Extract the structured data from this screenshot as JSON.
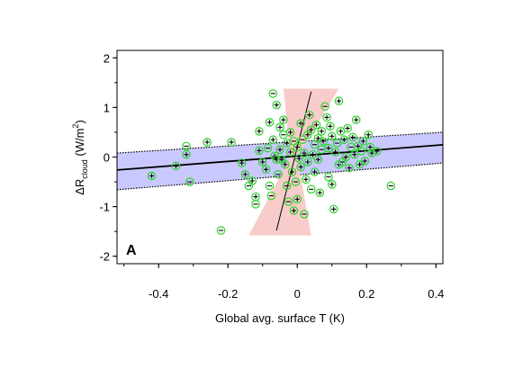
{
  "chart_data": {
    "type": "scatter",
    "panel_label": "A",
    "xlabel": "Global avg. surface T (K)",
    "ylabel": {
      "prefix": "ΔR",
      "subscript": "cloud",
      "units_open": " (W/m",
      "superscript": "2",
      "units_close": ")"
    },
    "xlim": [
      -0.52,
      0.42
    ],
    "ylim": [
      -2.15,
      2.15
    ],
    "xticks": [
      -0.4,
      -0.2,
      0,
      0.2,
      0.4
    ],
    "xtick_labels": [
      "-0.4",
      "-0.2",
      "0",
      "0.2",
      "0.4"
    ],
    "yticks": [
      -2,
      -1,
      0,
      1,
      2
    ],
    "ytick_labels": [
      "-2",
      "-1",
      "0",
      "1",
      "2"
    ],
    "grid": false,
    "marker_color": "#2cd52c",
    "fit_main": {
      "slope": 0.54,
      "intercept": 0.02,
      "x_range": [
        -0.52,
        0.42
      ],
      "color": "#000000"
    },
    "fit_band_blue": {
      "color": "#c9c9ff",
      "x": [
        -0.52,
        0.42
      ],
      "upper": [
        0.08,
        0.5
      ],
      "lower": [
        -0.66,
        -0.12
      ]
    },
    "fit_inverse": {
      "x_range": [
        -0.06,
        0.04
      ],
      "y_range": [
        -1.48,
        1.32
      ],
      "color": "#000000"
    },
    "fit_band_red": {
      "color": "#f9cccc",
      "top_x": [
        -0.04,
        0.12
      ],
      "top_y": 1.38,
      "bottom_x": [
        -0.14,
        0.04
      ],
      "bottom_y": -1.58,
      "waist_x": [
        -0.02,
        0.0
      ],
      "waist_y": 0.0
    },
    "points": [
      {
        "x": -0.42,
        "y": -0.38,
        "s": "+"
      },
      {
        "x": -0.35,
        "y": -0.18,
        "s": "+"
      },
      {
        "x": -0.32,
        "y": 0.22,
        "s": "-"
      },
      {
        "x": -0.32,
        "y": 0.05,
        "s": "+"
      },
      {
        "x": -0.31,
        "y": -0.5,
        "s": "-"
      },
      {
        "x": -0.26,
        "y": 0.3,
        "s": "+"
      },
      {
        "x": -0.22,
        "y": -1.48,
        "s": "-"
      },
      {
        "x": -0.19,
        "y": 0.3,
        "s": "+"
      },
      {
        "x": -0.16,
        "y": -0.12,
        "s": "+"
      },
      {
        "x": -0.15,
        "y": -0.35,
        "s": "+"
      },
      {
        "x": -0.14,
        "y": -0.58,
        "s": "-"
      },
      {
        "x": -0.13,
        "y": -0.48,
        "s": "+"
      },
      {
        "x": -0.12,
        "y": -0.8,
        "s": "+"
      },
      {
        "x": -0.12,
        "y": -0.95,
        "s": "-"
      },
      {
        "x": -0.11,
        "y": 0.52,
        "s": "+"
      },
      {
        "x": -0.11,
        "y": 0.13,
        "s": "+"
      },
      {
        "x": -0.1,
        "y": -0.1,
        "s": "+"
      },
      {
        "x": -0.09,
        "y": -0.25,
        "s": "+"
      },
      {
        "x": -0.085,
        "y": 0.18,
        "s": "-"
      },
      {
        "x": -0.08,
        "y": 0.7,
        "s": "+"
      },
      {
        "x": -0.08,
        "y": -0.58,
        "s": "-"
      },
      {
        "x": -0.075,
        "y": -0.78,
        "s": "-"
      },
      {
        "x": -0.07,
        "y": 1.28,
        "s": "-"
      },
      {
        "x": -0.07,
        "y": 0.35,
        "s": "+"
      },
      {
        "x": -0.065,
        "y": 0.02,
        "s": "+"
      },
      {
        "x": -0.06,
        "y": 1.05,
        "s": "+"
      },
      {
        "x": -0.06,
        "y": -0.05,
        "s": "+"
      },
      {
        "x": -0.055,
        "y": -0.35,
        "s": "-"
      },
      {
        "x": -0.05,
        "y": 0.6,
        "s": "+"
      },
      {
        "x": -0.05,
        "y": 0.15,
        "s": "+"
      },
      {
        "x": -0.045,
        "y": -0.05,
        "s": "+"
      },
      {
        "x": -0.04,
        "y": 0.75,
        "s": "+"
      },
      {
        "x": -0.04,
        "y": 0.45,
        "s": "-"
      },
      {
        "x": -0.035,
        "y": -0.15,
        "s": "+"
      },
      {
        "x": -0.03,
        "y": -0.58,
        "s": "-"
      },
      {
        "x": -0.03,
        "y": 0.28,
        "s": "+"
      },
      {
        "x": -0.025,
        "y": -0.9,
        "s": "-"
      },
      {
        "x": -0.02,
        "y": 0.5,
        "s": "+"
      },
      {
        "x": -0.02,
        "y": 0.1,
        "s": "+"
      },
      {
        "x": -0.015,
        "y": -0.3,
        "s": "+"
      },
      {
        "x": -0.01,
        "y": -1.08,
        "s": "+"
      },
      {
        "x": -0.01,
        "y": 0.32,
        "s": "-"
      },
      {
        "x": -0.005,
        "y": -0.5,
        "s": "-"
      },
      {
        "x": 0.0,
        "y": 0.2,
        "s": "+"
      },
      {
        "x": 0.0,
        "y": -0.85,
        "s": "+"
      },
      {
        "x": 0.005,
        "y": -0.03,
        "s": "+"
      },
      {
        "x": 0.01,
        "y": 0.68,
        "s": "+"
      },
      {
        "x": 0.01,
        "y": -0.2,
        "s": "+"
      },
      {
        "x": 0.015,
        "y": 0.35,
        "s": "-"
      },
      {
        "x": 0.02,
        "y": -1.15,
        "s": "-"
      },
      {
        "x": 0.02,
        "y": 0.08,
        "s": "+"
      },
      {
        "x": 0.025,
        "y": -0.45,
        "s": "+"
      },
      {
        "x": 0.03,
        "y": 0.45,
        "s": "+"
      },
      {
        "x": 0.03,
        "y": -0.1,
        "s": "+"
      },
      {
        "x": 0.035,
        "y": 0.85,
        "s": "+"
      },
      {
        "x": 0.04,
        "y": -0.65,
        "s": "-"
      },
      {
        "x": 0.04,
        "y": 0.55,
        "s": "+"
      },
      {
        "x": 0.045,
        "y": 0.05,
        "s": "+"
      },
      {
        "x": 0.05,
        "y": 0.25,
        "s": "-"
      },
      {
        "x": 0.05,
        "y": -0.3,
        "s": "+"
      },
      {
        "x": 0.055,
        "y": 0.65,
        "s": "+"
      },
      {
        "x": 0.06,
        "y": 0.38,
        "s": "+"
      },
      {
        "x": 0.06,
        "y": -0.05,
        "s": "+"
      },
      {
        "x": 0.065,
        "y": -0.72,
        "s": "+"
      },
      {
        "x": 0.07,
        "y": 0.52,
        "s": "+"
      },
      {
        "x": 0.07,
        "y": 0.15,
        "s": "-"
      },
      {
        "x": 0.075,
        "y": 0.32,
        "s": "+"
      },
      {
        "x": 0.08,
        "y": 1.02,
        "s": "-"
      },
      {
        "x": 0.085,
        "y": 0.8,
        "s": "+"
      },
      {
        "x": 0.09,
        "y": -0.4,
        "s": "-"
      },
      {
        "x": 0.09,
        "y": 0.18,
        "s": "+"
      },
      {
        "x": 0.095,
        "y": 0.62,
        "s": "+"
      },
      {
        "x": 0.1,
        "y": -0.55,
        "s": "+"
      },
      {
        "x": 0.1,
        "y": 0.42,
        "s": "+"
      },
      {
        "x": 0.105,
        "y": -1.05,
        "s": "+"
      },
      {
        "x": 0.11,
        "y": 0.1,
        "s": "+"
      },
      {
        "x": 0.115,
        "y": 0.28,
        "s": "-"
      },
      {
        "x": 0.12,
        "y": -0.15,
        "s": "+"
      },
      {
        "x": 0.12,
        "y": 1.13,
        "s": "+"
      },
      {
        "x": 0.125,
        "y": 0.52,
        "s": "+"
      },
      {
        "x": 0.13,
        "y": -0.1,
        "s": "-"
      },
      {
        "x": 0.135,
        "y": 0.35,
        "s": "+"
      },
      {
        "x": 0.14,
        "y": 0.0,
        "s": "+"
      },
      {
        "x": 0.145,
        "y": 0.58,
        "s": "+"
      },
      {
        "x": 0.15,
        "y": -0.22,
        "s": "+"
      },
      {
        "x": 0.155,
        "y": 0.2,
        "s": "-"
      },
      {
        "x": 0.16,
        "y": 0.4,
        "s": "+"
      },
      {
        "x": 0.165,
        "y": 0.05,
        "s": "+"
      },
      {
        "x": 0.17,
        "y": 0.75,
        "s": "+"
      },
      {
        "x": 0.175,
        "y": 0.22,
        "s": "+"
      },
      {
        "x": 0.18,
        "y": -0.15,
        "s": "+"
      },
      {
        "x": 0.185,
        "y": 0.12,
        "s": "-"
      },
      {
        "x": 0.19,
        "y": 0.32,
        "s": "+"
      },
      {
        "x": 0.195,
        "y": -0.08,
        "s": "+"
      },
      {
        "x": 0.205,
        "y": 0.45,
        "s": "+"
      },
      {
        "x": 0.21,
        "y": 0.2,
        "s": "+"
      },
      {
        "x": 0.215,
        "y": 0.08,
        "s": "+"
      },
      {
        "x": 0.23,
        "y": 0.12,
        "s": "+"
      },
      {
        "x": 0.27,
        "y": -0.58,
        "s": "-"
      }
    ]
  }
}
